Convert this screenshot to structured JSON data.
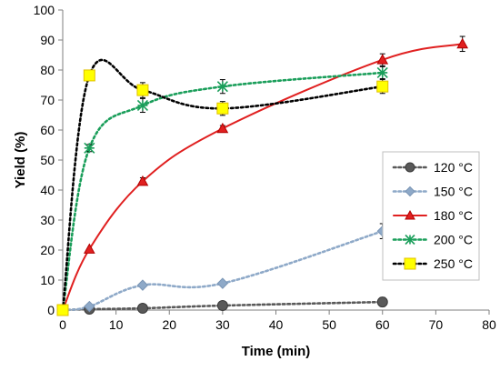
{
  "chart_data": {
    "type": "line",
    "xlabel": "Time (min)",
    "ylabel": "Yield (%)",
    "xlim": [
      0,
      80
    ],
    "ylim": [
      0,
      100
    ],
    "xticks": [
      0,
      10,
      20,
      30,
      40,
      50,
      60,
      70,
      80
    ],
    "yticks": [
      0,
      10,
      20,
      30,
      40,
      50,
      60,
      70,
      80,
      90,
      100
    ],
    "grid": false,
    "legend_position": "right",
    "series": [
      {
        "name": "120 °C",
        "color": "#595959",
        "marker": "circle",
        "line_style": "dotted",
        "x": [
          0,
          5,
          15,
          30,
          60
        ],
        "y": [
          0,
          0.3,
          0.6,
          1.5,
          2.7
        ],
        "error": [
          0,
          0,
          0,
          0,
          1.5
        ]
      },
      {
        "name": "150 °C",
        "color": "#8ea9c8",
        "marker": "diamond",
        "line_style": "dotted",
        "x": [
          0,
          5,
          15,
          30,
          60
        ],
        "y": [
          0,
          1.2,
          8.3,
          8.9,
          26.3
        ],
        "error": [
          0,
          0,
          0,
          0,
          2.5
        ]
      },
      {
        "name": "180 °C",
        "color": "#e02020",
        "marker": "triangle",
        "line_style": "solid",
        "x": [
          0,
          5,
          15,
          30,
          60,
          75
        ],
        "y": [
          0,
          20.3,
          42.9,
          60.5,
          83.4,
          88.7
        ],
        "error": [
          0,
          0,
          1.2,
          1.0,
          2.0,
          2.5
        ]
      },
      {
        "name": "200 °C",
        "color": "#1a9e5a",
        "marker": "star",
        "line_style": "dotted",
        "x": [
          0,
          5,
          15,
          30,
          60
        ],
        "y": [
          0,
          54,
          68.2,
          74.5,
          79.1
        ],
        "error": [
          0,
          1.2,
          2.3,
          2.3,
          2.0
        ]
      },
      {
        "name": "250 °C",
        "color": "#ffff00",
        "marker": "square",
        "line_style": "dotted",
        "x": [
          0,
          5,
          15,
          30,
          60
        ],
        "y": [
          0,
          78.2,
          73.3,
          67.2,
          74.5
        ],
        "error": [
          0,
          1.5,
          2.5,
          2.3,
          2.3
        ]
      }
    ]
  }
}
